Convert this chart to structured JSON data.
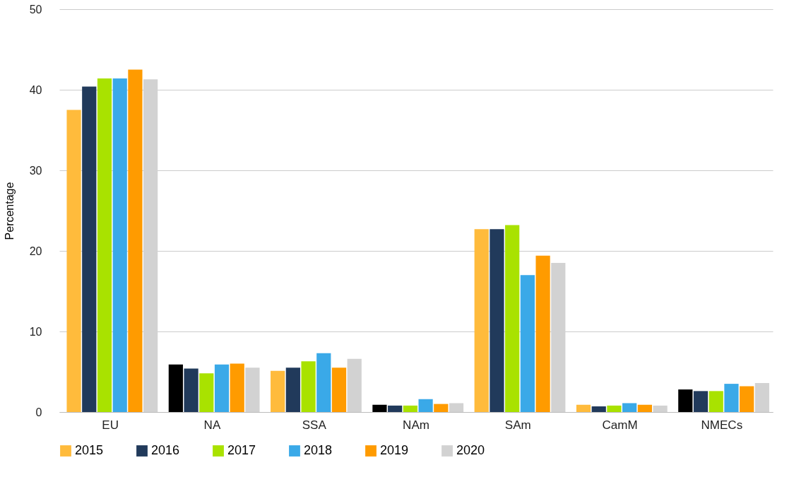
{
  "chart_data": {
    "type": "bar",
    "ylabel": "Percentage",
    "categories": [
      "EU",
      "NA",
      "SSA",
      "NAm",
      "SAm",
      "CamM",
      "NMECs"
    ],
    "series": [
      {
        "name": "2015",
        "color": "#ffbb3c",
        "colors": [
          "#ffbb3c",
          "#000000",
          "#ffbb3c",
          "#000000",
          "#ffbb3c",
          "#ffbb3c",
          "#000000"
        ],
        "values": [
          37.5,
          5.9,
          5.1,
          0.9,
          22.7,
          0.9,
          2.8
        ]
      },
      {
        "name": "2016",
        "color": "#213a5b",
        "values": [
          40.4,
          5.4,
          5.5,
          0.8,
          22.7,
          0.7,
          2.6
        ]
      },
      {
        "name": "2017",
        "color": "#a9e200",
        "values": [
          41.4,
          4.8,
          6.3,
          0.8,
          23.2,
          0.8,
          2.6
        ]
      },
      {
        "name": "2018",
        "color": "#3aa9e8",
        "values": [
          41.4,
          5.9,
          7.3,
          1.6,
          17.0,
          1.1,
          3.5
        ]
      },
      {
        "name": "2019",
        "color": "#ff9b00",
        "values": [
          42.5,
          6.0,
          5.5,
          1.0,
          19.4,
          0.9,
          3.2
        ]
      },
      {
        "name": "2020",
        "color": "#d2d2d2",
        "values": [
          41.3,
          5.5,
          6.6,
          1.1,
          18.5,
          0.8,
          3.6
        ]
      }
    ],
    "ylim": [
      0,
      50
    ],
    "yticks": [
      0,
      10,
      20,
      30,
      40,
      50
    ],
    "grid": "y",
    "legend": "bottom left"
  }
}
